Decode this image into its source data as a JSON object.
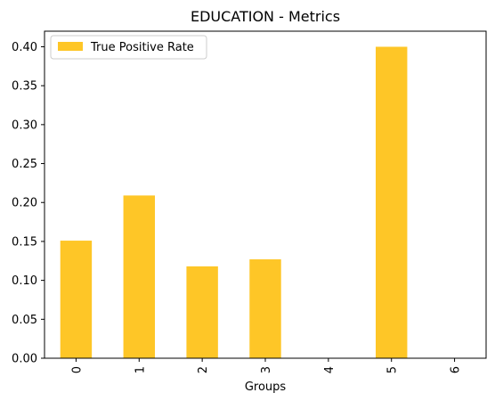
{
  "chart_data": {
    "type": "bar",
    "title": "EDUCATION - Metrics",
    "xlabel": "Groups",
    "ylabel": "",
    "categories": [
      "0",
      "1",
      "2",
      "3",
      "4",
      "5",
      "6"
    ],
    "series": [
      {
        "name": "True Positive Rate",
        "values": [
          0.151,
          0.209,
          0.118,
          0.127,
          0.0,
          0.4,
          0.0
        ],
        "color": "#fec627"
      }
    ],
    "ylim": [
      0,
      0.42
    ],
    "yticks": [
      "0.00",
      "0.05",
      "0.10",
      "0.15",
      "0.20",
      "0.25",
      "0.30",
      "0.35",
      "0.40"
    ],
    "grid": false,
    "legend_position": "top-left"
  }
}
